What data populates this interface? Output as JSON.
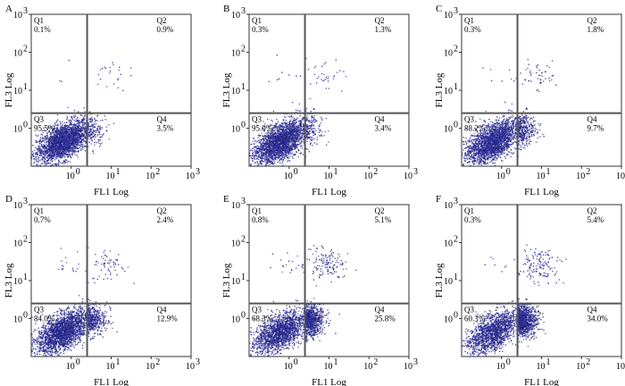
{
  "chart_data": [
    {
      "type": "scatter",
      "panel": "A",
      "xlabel": "FL1 Log",
      "ylabel": "FL3 Log",
      "xscale": "log",
      "yscale": "log",
      "xlim": [
        0.1,
        1000
      ],
      "ylim": [
        0.1,
        1000
      ],
      "x_ticks": [
        "10",
        "10",
        "10",
        "10"
      ],
      "x_tick_exps": [
        "0",
        "1",
        "2",
        "3"
      ],
      "y_ticks": [
        "10",
        "10",
        "10",
        "10"
      ],
      "y_tick_exps": [
        "0",
        "1",
        "2",
        "3"
      ],
      "gate_x": 2.5,
      "gate_y": 2.5,
      "quadrants": [
        {
          "name": "Q1",
          "value": "0.1%"
        },
        {
          "name": "Q2",
          "value": "0.9%"
        },
        {
          "name": "Q3",
          "value": "95.5%"
        },
        {
          "name": "Q4",
          "value": "3.5%"
        }
      ]
    },
    {
      "type": "scatter",
      "panel": "B",
      "xlabel": "FL1 Log",
      "ylabel": "FL3 Log",
      "xscale": "log",
      "yscale": "log",
      "xlim": [
        0.1,
        1000
      ],
      "ylim": [
        0.1,
        1000
      ],
      "x_ticks": [
        "10",
        "10",
        "10",
        "10"
      ],
      "x_tick_exps": [
        "0",
        "1",
        "2",
        "3"
      ],
      "y_ticks": [
        "10",
        "10",
        "10",
        "10"
      ],
      "y_tick_exps": [
        "0",
        "1",
        "2",
        "3"
      ],
      "gate_x": 2.5,
      "gate_y": 2.5,
      "quadrants": [
        {
          "name": "Q1",
          "value": "0.3%"
        },
        {
          "name": "Q2",
          "value": "1.3%"
        },
        {
          "name": "Q3",
          "value": "95.0%"
        },
        {
          "name": "Q4",
          "value": "3.4%"
        }
      ]
    },
    {
      "type": "scatter",
      "panel": "C",
      "xlabel": "FL1 Log",
      "ylabel": "FL3 Log",
      "xscale": "log",
      "yscale": "log",
      "xlim": [
        0.1,
        1000
      ],
      "ylim": [
        0.1,
        1000
      ],
      "x_ticks": [
        "10",
        "10",
        "10",
        "10"
      ],
      "x_tick_exps": [
        "0",
        "1",
        "2",
        "3"
      ],
      "y_ticks": [
        "10",
        "10",
        "10",
        "10"
      ],
      "y_tick_exps": [
        "0",
        "1",
        "2",
        "3"
      ],
      "gate_x": 2.5,
      "gate_y": 2.5,
      "quadrants": [
        {
          "name": "Q1",
          "value": "0.3%"
        },
        {
          "name": "Q2",
          "value": "1.8%"
        },
        {
          "name": "Q3",
          "value": "88.2%"
        },
        {
          "name": "Q4",
          "value": "9.7%"
        }
      ]
    },
    {
      "type": "scatter",
      "panel": "D",
      "xlabel": "FL1 Log",
      "ylabel": "FL3 Log",
      "xscale": "log",
      "yscale": "log",
      "xlim": [
        0.1,
        1000
      ],
      "ylim": [
        0.1,
        1000
      ],
      "x_ticks": [
        "10",
        "10",
        "10",
        "10"
      ],
      "x_tick_exps": [
        "0",
        "1",
        "2",
        "3"
      ],
      "y_ticks": [
        "10",
        "10",
        "10",
        "10"
      ],
      "y_tick_exps": [
        "0",
        "1",
        "2",
        "3"
      ],
      "gate_x": 2.5,
      "gate_y": 2.5,
      "quadrants": [
        {
          "name": "Q1",
          "value": "0.7%"
        },
        {
          "name": "Q2",
          "value": "2.4%"
        },
        {
          "name": "Q3",
          "value": "84.0%"
        },
        {
          "name": "Q4",
          "value": "12.9%"
        }
      ]
    },
    {
      "type": "scatter",
      "panel": "E",
      "xlabel": "FL1 Log",
      "ylabel": "FL3 Log",
      "xscale": "log",
      "yscale": "log",
      "xlim": [
        0.1,
        1000
      ],
      "ylim": [
        0.1,
        1000
      ],
      "x_ticks": [
        "10",
        "10",
        "10",
        "10"
      ],
      "x_tick_exps": [
        "0",
        "1",
        "2",
        "3"
      ],
      "y_ticks": [
        "10",
        "10",
        "10",
        "10"
      ],
      "y_tick_exps": [
        "0",
        "1",
        "2",
        "3"
      ],
      "gate_x": 2.5,
      "gate_y": 2.5,
      "quadrants": [
        {
          "name": "Q1",
          "value": "0.8%"
        },
        {
          "name": "Q2",
          "value": "5.1%"
        },
        {
          "name": "Q3",
          "value": "68.3%"
        },
        {
          "name": "Q4",
          "value": "25.8%"
        }
      ]
    },
    {
      "type": "scatter",
      "panel": "F",
      "xlabel": "FL1 Log",
      "ylabel": "FL3 Log",
      "xscale": "log",
      "yscale": "log",
      "xlim": [
        0.1,
        1000
      ],
      "ylim": [
        0.1,
        1000
      ],
      "x_ticks": [
        "10",
        "10",
        "10",
        "10"
      ],
      "x_tick_exps": [
        "0",
        "1",
        "2",
        "3"
      ],
      "y_ticks": [
        "10",
        "10",
        "10",
        "10"
      ],
      "y_tick_exps": [
        "0",
        "1",
        "2",
        "3"
      ],
      "gate_x": 2.5,
      "gate_y": 2.5,
      "quadrants": [
        {
          "name": "Q1",
          "value": "0.3%"
        },
        {
          "name": "Q2",
          "value": "5.4%"
        },
        {
          "name": "Q3",
          "value": "60.3%"
        },
        {
          "name": "Q4",
          "value": "34.0%"
        }
      ]
    }
  ],
  "colors": {
    "dot": "#3a3aa8",
    "dot_dense": "#1f1f7a",
    "frame": "#333333",
    "gate": "#555555"
  }
}
